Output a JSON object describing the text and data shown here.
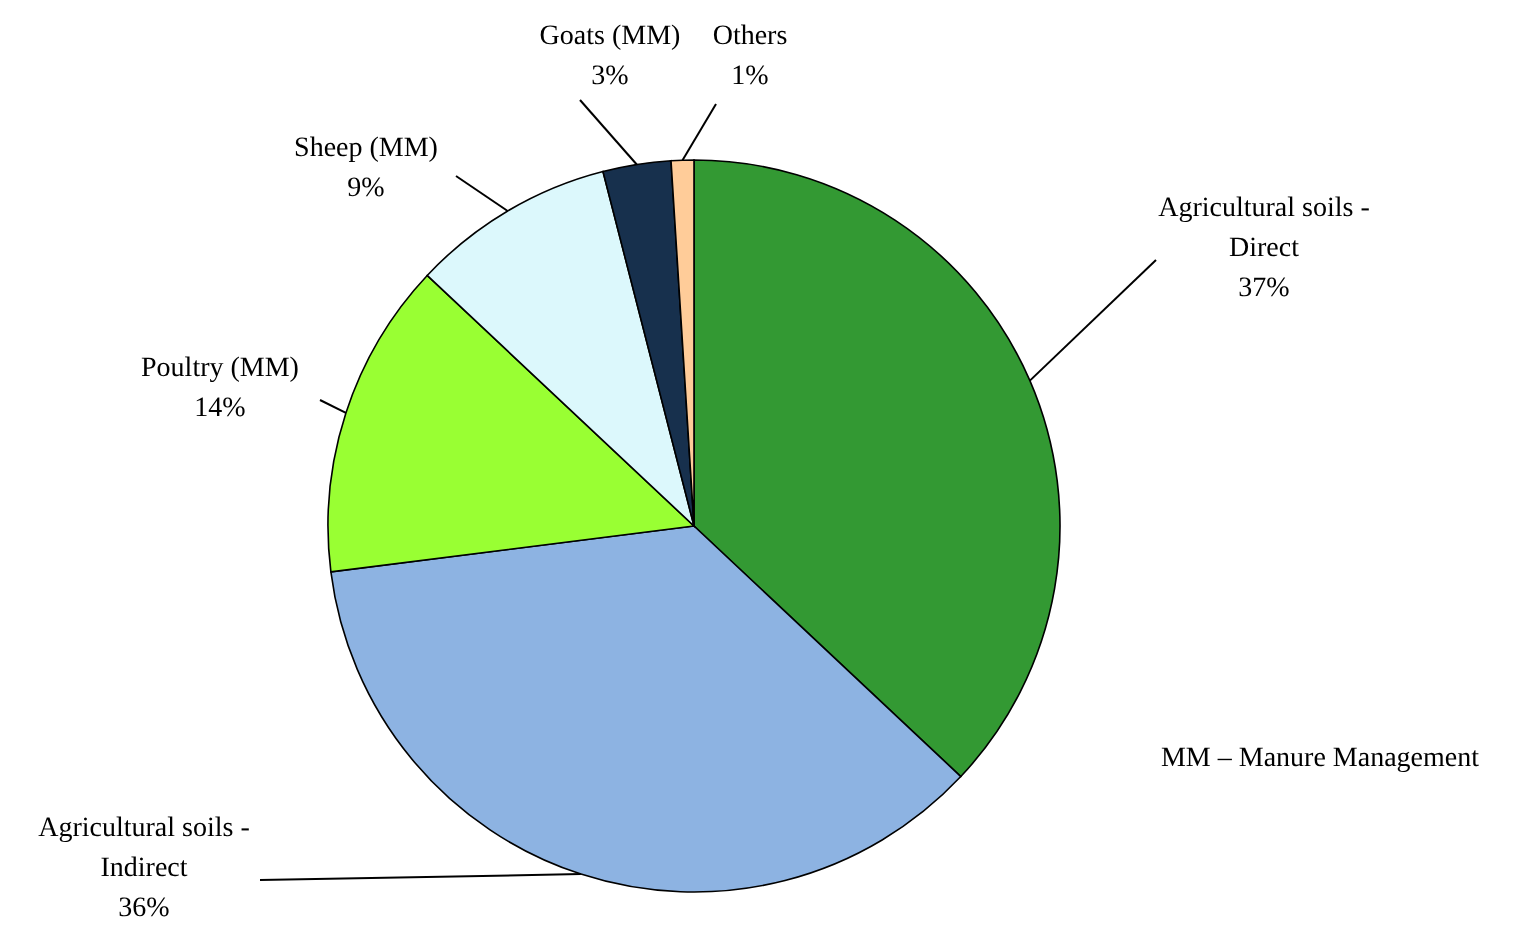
{
  "chart_data": {
    "type": "pie",
    "categories": [
      "Agricultural soils - Direct",
      "Agricultural soils - Indirect",
      "Poultry (MM)",
      "Sheep (MM)",
      "Goats (MM)",
      "Others"
    ],
    "values": [
      37,
      36,
      14,
      9,
      3,
      1
    ],
    "value_labels": [
      "37%",
      "36%",
      "14%",
      "9%",
      "3%",
      "1%"
    ],
    "colors": [
      "#339933",
      "#8db3e2",
      "#99ff33",
      "#dcf8fc",
      "#17304d",
      "#ffcc99"
    ],
    "annotations": [
      "MM – Manure Management"
    ]
  }
}
